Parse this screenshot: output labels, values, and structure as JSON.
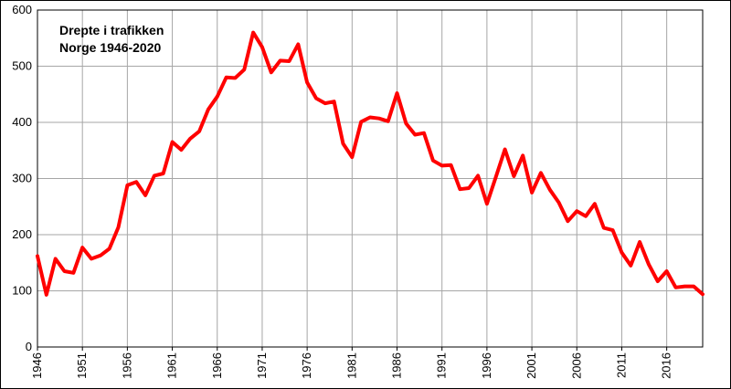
{
  "chart_data": {
    "type": "line",
    "title": "Drepte i trafikken",
    "subtitle": "Norge 1946-2020",
    "xlabel": "",
    "ylabel": "",
    "ylim": [
      0,
      600
    ],
    "xlim": [
      1946,
      2020
    ],
    "yticks": [
      0,
      100,
      200,
      300,
      400,
      500,
      600
    ],
    "xticks": [
      1946,
      1951,
      1956,
      1961,
      1966,
      1971,
      1976,
      1981,
      1986,
      1991,
      1996,
      2001,
      2006,
      2011,
      2016
    ],
    "grid": true,
    "line_color": "#ff0000",
    "series": [
      {
        "x": [
          1946,
          1947,
          1948,
          1949,
          1950,
          1951,
          1952,
          1953,
          1954,
          1955,
          1956,
          1957,
          1958,
          1959,
          1960,
          1961,
          1962,
          1963,
          1964,
          1965,
          1966,
          1967,
          1968,
          1969,
          1970,
          1971,
          1972,
          1973,
          1974,
          1975,
          1976,
          1977,
          1978,
          1979,
          1980,
          1981,
          1982,
          1983,
          1984,
          1985,
          1986,
          1987,
          1988,
          1989,
          1990,
          1991,
          1992,
          1993,
          1994,
          1995,
          1996,
          1997,
          1998,
          1999,
          2000,
          2001,
          2002,
          2003,
          2004,
          2005,
          2006,
          2007,
          2008,
          2009,
          2010,
          2011,
          2012,
          2013,
          2014,
          2015,
          2016,
          2017,
          2018,
          2019,
          2020
        ],
        "values": [
          162,
          93,
          157,
          135,
          132,
          177,
          157,
          163,
          175,
          213,
          288,
          294,
          270,
          305,
          309,
          365,
          351,
          371,
          384,
          423,
          446,
          480,
          479,
          494,
          560,
          534,
          489,
          510,
          509,
          539,
          471,
          443,
          434,
          437,
          362,
          338,
          401,
          409,
          407,
          402,
          452,
          398,
          378,
          381,
          332,
          323,
          324,
          281,
          283,
          305,
          255,
          303,
          352,
          304,
          341,
          275,
          310,
          280,
          257,
          224,
          242,
          233,
          255,
          212,
          208,
          168,
          145,
          187,
          147,
          117,
          135,
          106,
          108,
          108,
          94
        ]
      }
    ]
  }
}
